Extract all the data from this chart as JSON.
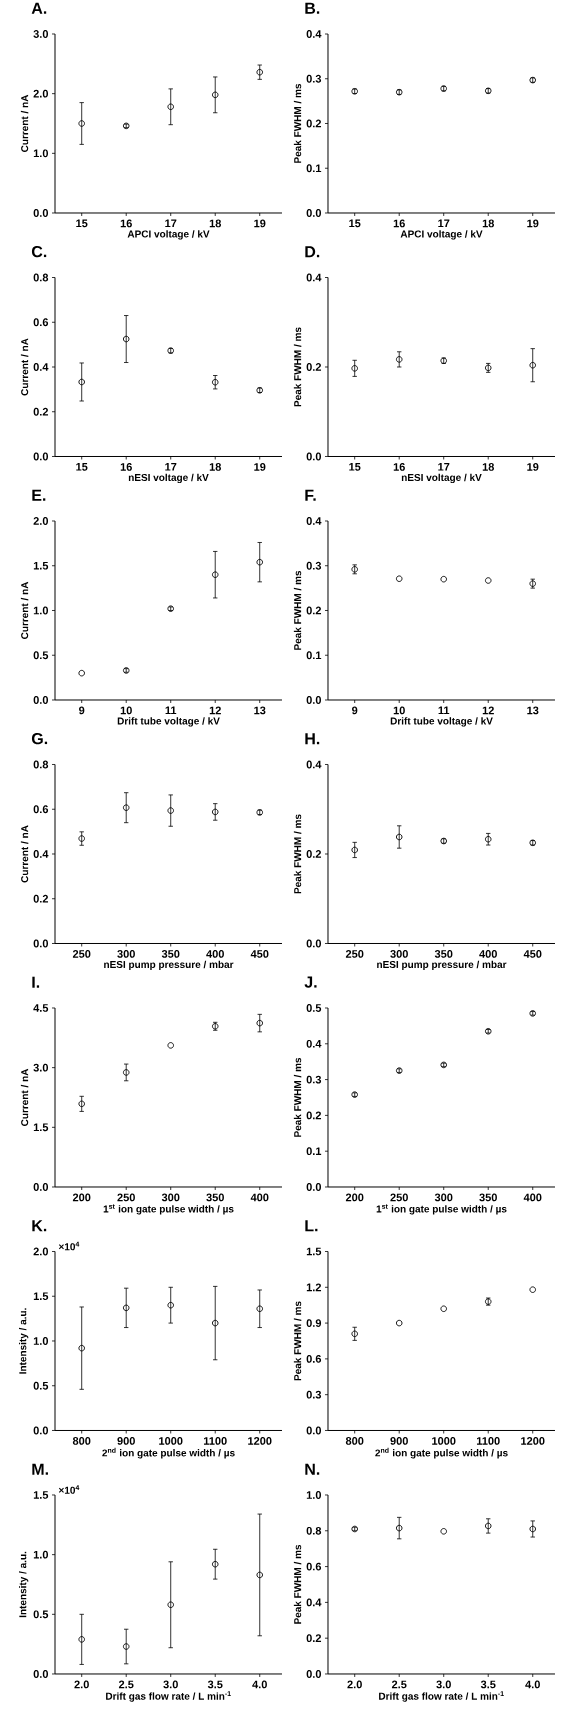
{
  "chart_data": [
    {
      "type": "scatter",
      "title": "A.",
      "xlabel": "APCI voltage / kV",
      "ylabel": "Current / nA",
      "color": "#000000",
      "marker": "circle",
      "x": [
        15,
        16,
        17,
        18,
        19
      ],
      "values": [
        1.5,
        1.46,
        1.78,
        1.98,
        2.36
      ],
      "errors": [
        0.35,
        0.03,
        0.3,
        0.3,
        0.12
      ],
      "xlim": [
        14.4,
        19.5
      ],
      "xticks": [
        15,
        16,
        17,
        18,
        19
      ],
      "ylim": [
        0,
        3
      ],
      "yticks": [
        {
          "value": 0,
          "label": "0.0"
        },
        {
          "value": 1,
          "label": "1.0"
        },
        {
          "value": 2,
          "label": "2.0"
        },
        {
          "value": 3,
          "label": "3.0"
        }
      ]
    },
    {
      "type": "scatter",
      "title": "B.",
      "xlabel": "APCI voltage / kV",
      "ylabel": "Peak FWHM / ms",
      "color": "#000000",
      "marker": "circle",
      "x": [
        15,
        16,
        17,
        18,
        19
      ],
      "values": [
        0.272,
        0.27,
        0.278,
        0.273,
        0.297
      ],
      "errors": [
        0.005,
        0.005,
        0.005,
        0.005,
        0.005
      ],
      "xlim": [
        14.4,
        19.5
      ],
      "xticks": [
        15,
        16,
        17,
        18,
        19
      ],
      "ylim": [
        0,
        0.4
      ],
      "yticks": [
        {
          "value": 0,
          "label": "0.0"
        },
        0.1,
        0.2,
        0.3,
        0.4
      ]
    },
    {
      "type": "scatter",
      "title": "C.",
      "xlabel": "nESI voltage / kV",
      "ylabel": "Current / nA",
      "color": "#000000",
      "marker": "circle",
      "x": [
        15,
        16,
        17,
        18,
        19
      ],
      "values": [
        0.333,
        0.525,
        0.473,
        0.332,
        0.296
      ],
      "errors": [
        0.085,
        0.105,
        0.01,
        0.03,
        0.01
      ],
      "xlim": [
        14.4,
        19.5
      ],
      "xticks": [
        15,
        16,
        17,
        18,
        19
      ],
      "ylim": [
        0,
        0.8
      ],
      "yticks": [
        {
          "value": 0,
          "label": "0.0"
        },
        0.2,
        0.4,
        0.6,
        0.8
      ]
    },
    {
      "type": "scatter",
      "title": "D.",
      "xlabel": "nESI voltage / kV",
      "ylabel": "Peak FWHM / ms",
      "color": "#000000",
      "marker": "circle",
      "x": [
        15,
        16,
        17,
        18,
        19
      ],
      "values": [
        0.197,
        0.217,
        0.214,
        0.198,
        0.204
      ],
      "errors": [
        0.018,
        0.017,
        0.006,
        0.01,
        0.037
      ],
      "xlim": [
        14.4,
        19.5
      ],
      "xticks": [
        15,
        16,
        17,
        18,
        19
      ],
      "ylim": [
        0,
        0.4
      ],
      "yticks": [
        {
          "value": 0,
          "label": "0.0"
        },
        0.2,
        0.4
      ]
    },
    {
      "type": "scatter",
      "title": "E.",
      "xlabel": "Drift tube voltage / kV",
      "ylabel": "Current / nA",
      "color": "#000000",
      "marker": "circle",
      "x": [
        9,
        10,
        11,
        12,
        13
      ],
      "values": [
        0.3,
        0.33,
        1.02,
        1.4,
        1.54
      ],
      "errors": [
        null,
        0.02,
        0.02,
        0.26,
        0.22
      ],
      "xlim": [
        8.4,
        13.5
      ],
      "xticks": [
        9,
        10,
        11,
        12,
        13
      ],
      "ylim": [
        0,
        2
      ],
      "yticks": [
        {
          "value": 0,
          "label": "0.0"
        },
        0.5,
        {
          "value": 1,
          "label": "1.0"
        },
        1.5,
        {
          "value": 2,
          "label": "2.0"
        }
      ]
    },
    {
      "type": "scatter",
      "title": "F.",
      "xlabel": "Drift tube voltage / kV",
      "ylabel": "Peak FWHM / ms",
      "color": "#000000",
      "marker": "circle",
      "x": [
        9,
        10,
        11,
        12,
        13
      ],
      "values": [
        0.292,
        0.271,
        0.27,
        0.267,
        0.26
      ],
      "errors": [
        0.01,
        null,
        null,
        null,
        0.01
      ],
      "xlim": [
        8.4,
        13.5
      ],
      "xticks": [
        9,
        10,
        11,
        12,
        13
      ],
      "ylim": [
        0,
        0.4
      ],
      "yticks": [
        {
          "value": 0,
          "label": "0.0"
        },
        0.1,
        0.2,
        0.3,
        0.4
      ]
    },
    {
      "type": "scatter",
      "title": "G.",
      "xlabel": "nESI pump pressure / mbar",
      "ylabel": "Current / nA",
      "color": "#000000",
      "marker": "circle",
      "x": [
        250,
        300,
        350,
        400,
        450
      ],
      "values": [
        0.469,
        0.607,
        0.594,
        0.588,
        0.586
      ],
      "errors": [
        0.03,
        0.067,
        0.07,
        0.037,
        0.01
      ],
      "xlim": [
        220,
        475
      ],
      "xticks": [
        250,
        300,
        350,
        400,
        450
      ],
      "ylim": [
        0,
        0.8
      ],
      "yticks": [
        {
          "value": 0,
          "label": "0.0"
        },
        0.2,
        0.4,
        0.6,
        0.8
      ]
    },
    {
      "type": "scatter",
      "title": "H.",
      "xlabel": "nESI pump pressure / mbar",
      "ylabel": "Peak FWHM / ms",
      "color": "#000000",
      "marker": "circle",
      "x": [
        250,
        300,
        350,
        400,
        450
      ],
      "values": [
        0.209,
        0.238,
        0.229,
        0.233,
        0.225
      ],
      "errors": [
        0.017,
        0.025,
        0.005,
        0.013,
        0.005
      ],
      "xlim": [
        220,
        475
      ],
      "xticks": [
        250,
        300,
        350,
        400,
        450
      ],
      "ylim": [
        0,
        0.4
      ],
      "yticks": [
        {
          "value": 0,
          "label": "0.0"
        },
        0.2,
        0.4
      ]
    },
    {
      "type": "scatter",
      "title": "I.",
      "xlabel": "1$^{st}$ ion gate pulse width / µs",
      "ylabel": "Current / nA",
      "color": "#000000",
      "marker": "circle",
      "x": [
        200,
        250,
        300,
        350,
        400
      ],
      "values": [
        2.09,
        2.88,
        3.56,
        4.04,
        4.12
      ],
      "errors": [
        0.19,
        0.21,
        null,
        0.1,
        0.22
      ],
      "xlim": [
        170,
        425
      ],
      "xticks": [
        200,
        250,
        300,
        350,
        400
      ],
      "ylim": [
        0,
        4.5
      ],
      "yticks": [
        {
          "value": 0,
          "label": "0.0"
        },
        1.5,
        {
          "value": 3,
          "label": "3.0"
        },
        4.5
      ]
    },
    {
      "type": "scatter",
      "title": "J.",
      "xlabel": "1$^{st}$ ion gate pulse width / µs",
      "ylabel": "Peak FWHM / ms",
      "color": "#000000",
      "marker": "circle",
      "x": [
        200,
        250,
        300,
        350,
        400
      ],
      "values": [
        0.258,
        0.325,
        0.341,
        0.435,
        0.485
      ],
      "errors": [
        0.005,
        0.005,
        0.005,
        0.005,
        0.005
      ],
      "xlim": [
        170,
        425
      ],
      "xticks": [
        200,
        250,
        300,
        350,
        400
      ],
      "ylim": [
        0,
        0.5
      ],
      "yticks": [
        {
          "value": 0,
          "label": "0.0"
        },
        0.1,
        0.2,
        0.3,
        0.4,
        0.5
      ]
    },
    {
      "type": "scatter",
      "title": "K.",
      "xlabel": "2$^{nd}$ ion gate pulse width / µs",
      "ylabel": "Intensity / a.u.",
      "annotations": [
        "×10$^{4}$"
      ],
      "color": "#000000",
      "marker": "circle",
      "x": [
        800,
        900,
        1000,
        1100,
        1200
      ],
      "values": [
        0.92,
        1.37,
        1.4,
        1.2,
        1.36
      ],
      "errors": [
        0.46,
        0.22,
        0.2,
        0.41,
        0.21
      ],
      "xlim": [
        740,
        1250
      ],
      "xticks": [
        800,
        900,
        1000,
        1100,
        1200
      ],
      "ylim": [
        0,
        2
      ],
      "yticks": [
        {
          "value": 0,
          "label": "0.0"
        },
        0.5,
        {
          "value": 1,
          "label": "1.0"
        },
        1.5,
        {
          "value": 2,
          "label": "2.0"
        }
      ]
    },
    {
      "type": "scatter",
      "title": "L.",
      "xlabel": "2$^{nd}$ ion gate pulse width / µs",
      "ylabel": "Peak FWHM / ms",
      "color": "#000000",
      "marker": "circle",
      "x": [
        800,
        900,
        1000,
        1100,
        1200
      ],
      "values": [
        0.81,
        0.9,
        1.02,
        1.08,
        1.18
      ],
      "errors": [
        0.055,
        null,
        null,
        0.03,
        null
      ],
      "xlim": [
        740,
        1250
      ],
      "xticks": [
        800,
        900,
        1000,
        1100,
        1200
      ],
      "ylim": [
        0,
        1.5
      ],
      "yticks": [
        {
          "value": 0,
          "label": "0.0"
        },
        0.3,
        0.6,
        0.9,
        1.2,
        1.5
      ]
    },
    {
      "type": "scatter",
      "title": "M.",
      "xlabel": "Drift gas flow rate / L min$^{-1}$",
      "ylabel": "Intensity / a.u.",
      "annotations": [
        "×10$^{4}$"
      ],
      "color": "#000000",
      "marker": "circle",
      "x": [
        2.0,
        2.5,
        3.0,
        3.5,
        4.0
      ],
      "values": [
        0.29,
        0.23,
        0.58,
        0.92,
        0.83
      ],
      "errors": [
        0.21,
        0.145,
        0.36,
        0.125,
        0.51
      ],
      "xlim": [
        1.7,
        4.25
      ],
      "xticks": [
        {
          "value": 2,
          "label": "2.0"
        },
        2.5,
        {
          "value": 3,
          "label": "3.0"
        },
        3.5,
        {
          "value": 4,
          "label": "4.0"
        }
      ],
      "ylim": [
        0,
        1.5
      ],
      "yticks": [
        {
          "value": 0,
          "label": "0.0"
        },
        0.5,
        {
          "value": 1,
          "label": "1.0"
        },
        1.5
      ]
    },
    {
      "type": "scatter",
      "title": "N.",
      "xlabel": "Drift gas flow rate / L min$^{-1}$",
      "ylabel": "Peak FWHM / ms",
      "color": "#000000",
      "marker": "circle",
      "x": [
        2.0,
        2.5,
        3.0,
        3.5,
        4.0
      ],
      "values": [
        0.81,
        0.815,
        0.797,
        0.827,
        0.81
      ],
      "errors": [
        0.01,
        0.06,
        null,
        0.04,
        0.045
      ],
      "xlim": [
        1.7,
        4.25
      ],
      "xticks": [
        {
          "value": 2,
          "label": "2.0"
        },
        2.5,
        {
          "value": 3,
          "label": "3.0"
        },
        3.5,
        {
          "value": 4,
          "label": "4.0"
        }
      ],
      "ylim": [
        0,
        1
      ],
      "yticks": [
        {
          "value": 0,
          "label": "0.0"
        },
        0.2,
        0.4,
        0.6,
        0.8,
        {
          "value": 1,
          "label": "1.0"
        }
      ]
    }
  ]
}
